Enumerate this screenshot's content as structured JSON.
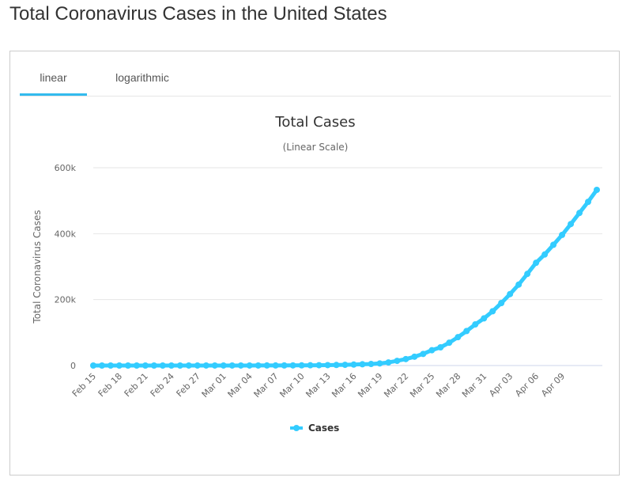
{
  "page": {
    "title": "Total Coronavirus Cases in the United States"
  },
  "tabs": [
    {
      "label": "linear",
      "active": true
    },
    {
      "label": "logarithmic",
      "active": false
    }
  ],
  "colors": {
    "accent": "#33bbee",
    "series": "#33ccff",
    "grid": "#e6e6e6",
    "axis_baseline": "#ccd6eb"
  },
  "chart_data": {
    "type": "line",
    "title": "Total Cases",
    "subtitle": "(Linear Scale)",
    "xlabel": "",
    "ylabel": "Total Coronavirus Cases",
    "ylim": [
      0,
      600000
    ],
    "y_ticks": [
      0,
      200000,
      400000,
      600000
    ],
    "y_tick_labels": [
      "0",
      "200k",
      "400k",
      "600k"
    ],
    "x_tick_labels": [
      "Feb 15",
      "Feb 18",
      "Feb 21",
      "Feb 24",
      "Feb 27",
      "Mar 01",
      "Mar 04",
      "Mar 07",
      "Mar 10",
      "Mar 13",
      "Mar 16",
      "Mar 19",
      "Mar 22",
      "Mar 25",
      "Mar 28",
      "Mar 31",
      "Apr 03",
      "Apr 06",
      "Apr 09"
    ],
    "grid": true,
    "legend_position": "bottom-center",
    "series": [
      {
        "name": "Cases",
        "x_start": "Feb 15",
        "x_end": "Apr 12",
        "values": [
          15,
          15,
          15,
          15,
          15,
          15,
          15,
          15,
          15,
          15,
          15,
          53,
          53,
          59,
          60,
          66,
          69,
          89,
          103,
          125,
          159,
          233,
          338,
          433,
          554,
          755,
          1025,
          1312,
          1663,
          2174,
          2951,
          3774,
          4661,
          6427,
          9415,
          14250,
          19624,
          26747,
          35206,
          46442,
          55231,
          69194,
          85991,
          104686,
          124665,
          143025,
          164620,
          189618,
          216721,
          245540,
          277953,
          311637,
          336851,
          366317,
          396223,
          429052,
          462780,
          496535,
          532879
        ]
      }
    ]
  }
}
